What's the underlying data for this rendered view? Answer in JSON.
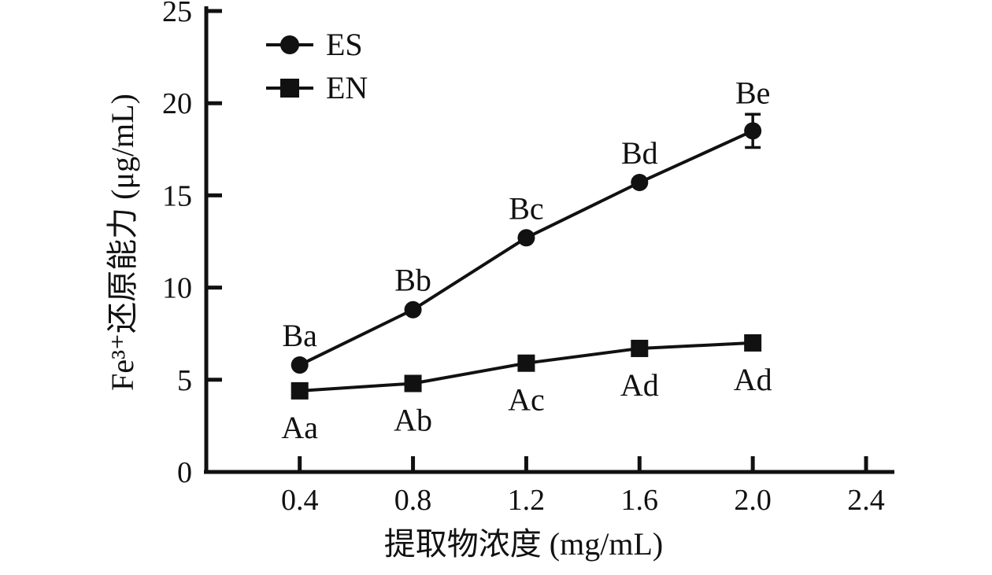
{
  "chart_data": {
    "type": "line",
    "title": "",
    "xlabel": "提取物浓度 (mg/mL)",
    "ylabel": "Fe³⁺还原能力 (μg/mL)",
    "xlim": [
      0.07,
      2.5
    ],
    "ylim": [
      0,
      25
    ],
    "x_ticks": [
      0.4,
      0.8,
      1.2,
      1.6,
      2.0,
      2.4
    ],
    "y_ticks": [
      0,
      5,
      10,
      15,
      20,
      25
    ],
    "grid": false,
    "x": [
      0.4,
      0.8,
      1.2,
      1.6,
      2.0
    ],
    "series": [
      {
        "name": "ES",
        "marker": "circle",
        "values": [
          5.8,
          8.8,
          12.7,
          15.7,
          18.5
        ],
        "errors": [
          0,
          0,
          0,
          0,
          0.9
        ],
        "labels": [
          "Ba",
          "Bb",
          "Bc",
          "Bd",
          "Be"
        ],
        "label_position": "above"
      },
      {
        "name": "EN",
        "marker": "square",
        "values": [
          4.4,
          4.8,
          5.9,
          6.7,
          7.0
        ],
        "errors": [
          0,
          0,
          0,
          0,
          0
        ],
        "labels": [
          "Aa",
          "Ab",
          "Ac",
          "Ad",
          "Ad"
        ],
        "label_position": "below"
      }
    ],
    "legend": {
      "position": "top-left",
      "entries": [
        "ES",
        "EN"
      ]
    },
    "colors": {
      "line": "#111111",
      "background": "#ffffff"
    }
  }
}
